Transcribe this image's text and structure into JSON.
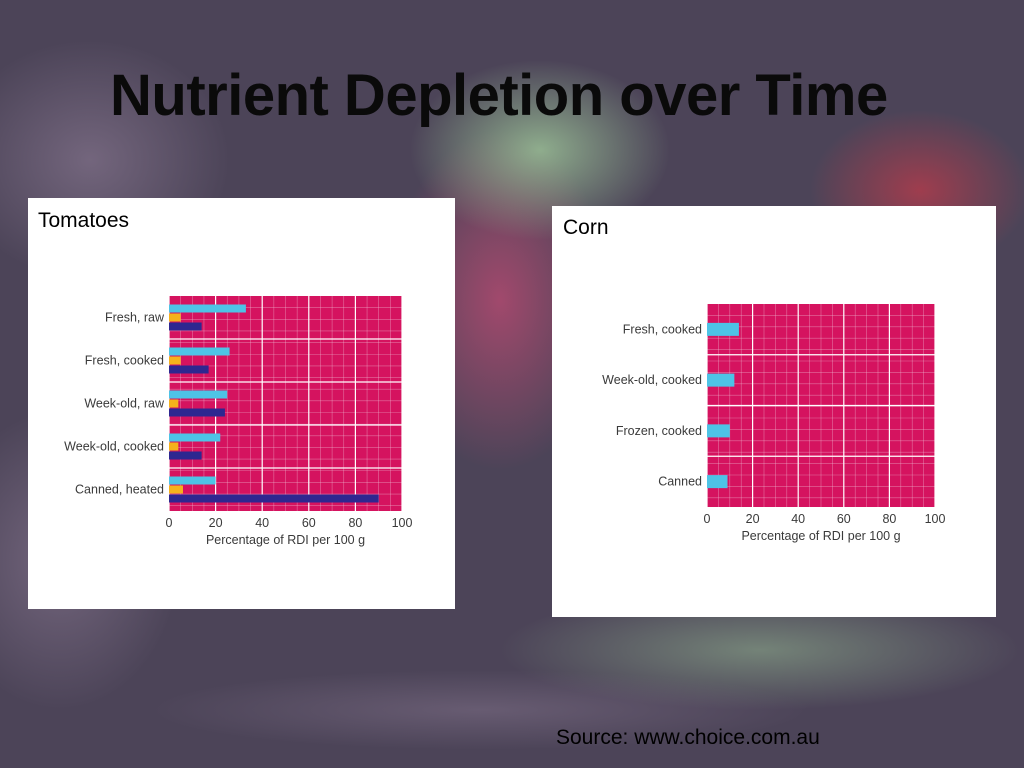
{
  "slide": {
    "title": "Nutrient Depletion over Time",
    "source": "Source:  www.choice.com.au"
  },
  "colors": {
    "plot_background": "#d5135f",
    "grid": "#f0c0d5",
    "series_light_blue": "#4ec3e6",
    "series_orange": "#f5b21c",
    "series_dark_blue": "#2e2790"
  },
  "chart_data": [
    {
      "type": "bar",
      "orientation": "horizontal",
      "title": "Tomatoes",
      "categories": [
        "Fresh, raw",
        "Fresh, cooked",
        "Week-old, raw",
        "Week-old, cooked",
        "Canned, heated"
      ],
      "series": [
        {
          "color": "#4ec3e6",
          "values": [
            33,
            26,
            25,
            22,
            20
          ]
        },
        {
          "color": "#f5b21c",
          "values": [
            5,
            5,
            4,
            4,
            6
          ]
        },
        {
          "color": "#2e2790",
          "values": [
            14,
            17,
            24,
            14,
            90
          ]
        }
      ],
      "xlabel": "Percentage of RDI per 100 g",
      "xlim": [
        0,
        100
      ],
      "xticks": [
        "0",
        "20",
        "40",
        "60",
        "80",
        "100"
      ],
      "grid": true
    },
    {
      "type": "bar",
      "orientation": "horizontal",
      "title": "Corn",
      "categories": [
        "Fresh, cooked",
        "Week-old, cooked",
        "Frozen, cooked",
        "Canned"
      ],
      "series": [
        {
          "color": "#4ec3e6",
          "values": [
            14,
            12,
            10,
            9
          ]
        }
      ],
      "xlabel": "Percentage of RDI per 100 g",
      "xlim": [
        0,
        100
      ],
      "xticks": [
        "0",
        "20",
        "40",
        "60",
        "80",
        "100"
      ],
      "grid": true
    }
  ]
}
